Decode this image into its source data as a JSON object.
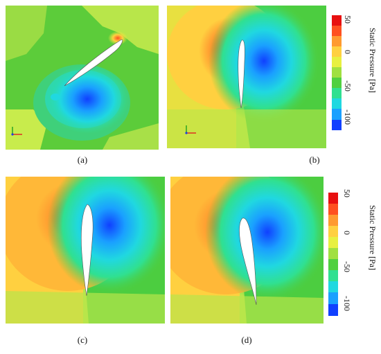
{
  "captions": {
    "a": "(a)",
    "b": "(b)",
    "c": "(c)",
    "d": "(d)"
  },
  "colorbar_top": {
    "label": "Static Pressure [Pa]",
    "ticks": [
      "50",
      "0",
      "-50",
      "-100"
    ],
    "range": [
      -100,
      50
    ]
  },
  "colorbar_bottom": {
    "label": "Static Pressure [Pa]",
    "ticks": [
      "50",
      "0",
      "-50",
      "-100"
    ],
    "range": [
      -100,
      50
    ]
  },
  "colormap": [
    "#1040ff",
    "#1aa0ff",
    "#20d8e0",
    "#30e090",
    "#50d040",
    "#a0e040",
    "#e8f040",
    "#ffd040",
    "#ff9a30",
    "#ff5020",
    "#e81010"
  ],
  "axis_triad": {
    "x": "x",
    "y": "y"
  }
}
